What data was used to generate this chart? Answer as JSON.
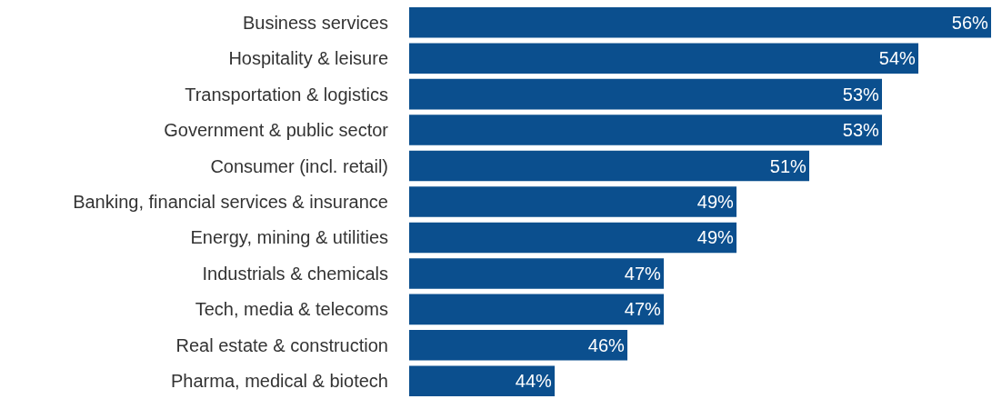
{
  "chart_data": {
    "type": "bar",
    "orientation": "horizontal",
    "categories": [
      "Business services",
      "Hospitality & leisure",
      "Transportation & logistics",
      "Government & public sector",
      "Consumer (incl. retail)",
      "Banking, financial services & insurance",
      "Energy, mining & utilities",
      "Industrials & chemicals",
      "Tech, media & telecoms",
      "Real estate & construction",
      "Pharma, medical & biotech"
    ],
    "values": [
      56,
      54,
      53,
      53,
      51,
      49,
      49,
      47,
      47,
      46,
      44
    ],
    "value_labels": [
      "56%",
      "54%",
      "53%",
      "53%",
      "51%",
      "49%",
      "49%",
      "47%",
      "47%",
      "46%",
      "44%"
    ],
    "color": "#0b4f8e",
    "xlim": [
      40,
      56
    ],
    "tick_labels": "y"
  }
}
